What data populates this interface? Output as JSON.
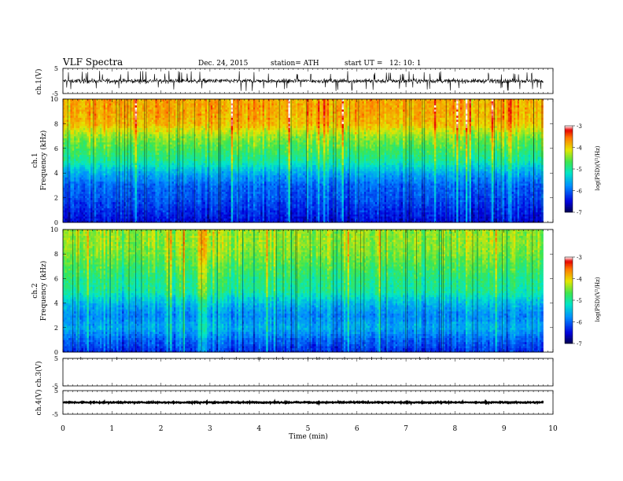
{
  "header": {
    "title": "VLF  Spectra",
    "date": "Dec. 24,  2015",
    "station": "station= ATH",
    "start": "start  UT  =",
    "start_time": "12: 10: 1"
  },
  "chart_data": [
    {
      "type": "line",
      "id": "ch1-waveform",
      "ylabel": "ch.1(V)",
      "ylim": [
        -5,
        5
      ],
      "yticks": [
        "5",
        "-5"
      ],
      "xlim": [
        0,
        10
      ],
      "data_extent_min": [
        0,
        9.8
      ],
      "baseline_v": 0,
      "typical_amplitude_v": 1.5,
      "spike_amplitude_v": 4
    },
    {
      "type": "heatmap",
      "id": "ch1-spectrogram",
      "ylabel_top": "ch.1",
      "ylabel": "Frequency  (kHz)",
      "xlim": [
        0,
        10
      ],
      "ylim": [
        0,
        10
      ],
      "yticks": [
        "0",
        "2",
        "4",
        "6",
        "8",
        "10"
      ],
      "colorbar": {
        "label": "log(PSD)(V²/Hz)",
        "range": [
          -7,
          -3
        ],
        "ticks": [
          "-3",
          "-4",
          "-5",
          "-6",
          "-7"
        ]
      },
      "log_psd_profile": [
        {
          "f": 0.0,
          "v": -6.5
        },
        {
          "f": 1.0,
          "v": -6.3
        },
        {
          "f": 2.0,
          "v": -6.1
        },
        {
          "f": 3.0,
          "v": -6.0
        },
        {
          "f": 4.0,
          "v": -5.6
        },
        {
          "f": 5.0,
          "v": -5.0
        },
        {
          "f": 6.0,
          "v": -4.7
        },
        {
          "f": 7.0,
          "v": -4.4
        },
        {
          "f": 8.0,
          "v": -3.9
        },
        {
          "f": 9.0,
          "v": -3.8
        },
        {
          "f": 10.0,
          "v": -3.8
        }
      ]
    },
    {
      "type": "heatmap",
      "id": "ch2-spectrogram",
      "ylabel_top": "ch.2",
      "ylabel": "Frequency  (kHz)",
      "xlim": [
        0,
        10
      ],
      "ylim": [
        0,
        10
      ],
      "yticks": [
        "0",
        "2",
        "4",
        "6",
        "8",
        "10"
      ],
      "colorbar": {
        "label": "log(PSD)(V²/Hz)",
        "range": [
          -7,
          -3
        ],
        "ticks": [
          "-3",
          "-4",
          "-5",
          "-6",
          "-7"
        ]
      },
      "log_psd_profile": [
        {
          "f": 0.0,
          "v": -6.3
        },
        {
          "f": 1.0,
          "v": -6.0
        },
        {
          "f": 2.0,
          "v": -5.6
        },
        {
          "f": 3.0,
          "v": -5.8
        },
        {
          "f": 4.0,
          "v": -5.5
        },
        {
          "f": 5.0,
          "v": -5.0
        },
        {
          "f": 6.0,
          "v": -4.9
        },
        {
          "f": 7.0,
          "v": -4.7
        },
        {
          "f": 8.0,
          "v": -4.5
        },
        {
          "f": 9.0,
          "v": -4.4
        },
        {
          "f": 10.0,
          "v": -4.4
        }
      ]
    },
    {
      "type": "line",
      "id": "ch3-waveform",
      "ylabel": "ch.3(V)",
      "ylim": [
        -5,
        5
      ],
      "yticks": [
        "5",
        "-5"
      ],
      "xlim": [
        0,
        10
      ],
      "data_extent_min": [
        0,
        9.8
      ],
      "baseline_v": 5,
      "typical_amplitude_v": 0.1
    },
    {
      "type": "line",
      "id": "ch4-waveform",
      "ylabel": "ch.4(V)",
      "ylim": [
        -5,
        5
      ],
      "yticks": [
        "5",
        "-5"
      ],
      "xlim": [
        0,
        10
      ],
      "data_extent_min": [
        0,
        9.8
      ],
      "baseline_v": 0,
      "typical_amplitude_v": 0.4
    }
  ],
  "xaxis": {
    "label": "Time  (min)",
    "ticks": [
      "0",
      "1",
      "2",
      "3",
      "4",
      "5",
      "6",
      "7",
      "8",
      "9",
      "10"
    ]
  }
}
